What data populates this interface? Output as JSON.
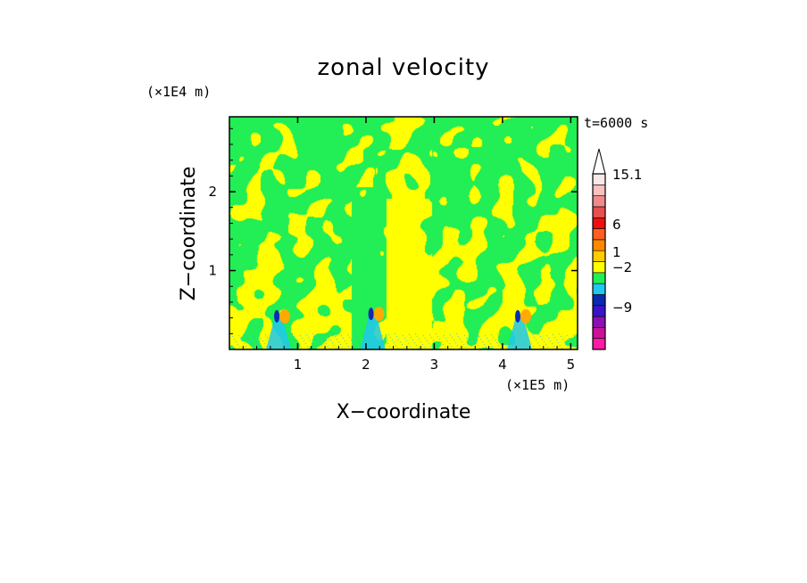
{
  "chart_data": {
    "type": "heatmap",
    "title": "zonal velocity",
    "xlabel": "X−coordinate",
    "ylabel": "Z−coordinate",
    "x_unit": "(×1E5 m)",
    "y_unit": "(×1E4 m)",
    "time_label": "t=6000 s",
    "xlim": [
      0,
      5.1
    ],
    "ylim": [
      0,
      2.95
    ],
    "x_ticks": [
      "1",
      "2",
      "3",
      "4",
      "5"
    ],
    "y_ticks": [
      "1",
      "2"
    ],
    "x_tick_values": [
      1,
      2,
      3,
      4,
      5
    ],
    "y_tick_values": [
      1,
      2
    ],
    "colorbar": {
      "labels": [
        "15.1",
        "6",
        "1",
        "−2",
        "−9"
      ],
      "levels": [
        -9,
        -2,
        1,
        6,
        15.1
      ],
      "colors": [
        "#ff1aa6",
        "#cc1099",
        "#8c0fb3",
        "#3a14c8",
        "#0a2ab4",
        "#1ec8f0",
        "#22ee55",
        "#ffff00",
        "#ffcc00",
        "#ff8800",
        "#ff6020",
        "#ee1010",
        "#e85050",
        "#f08a8a",
        "#f8c0c0",
        "#fae8e8"
      ],
      "extend": "max"
    },
    "features": [
      {
        "x": 0.72,
        "z": 0.42
      },
      {
        "x": 2.1,
        "z": 0.45
      },
      {
        "x": 4.25,
        "z": 0.42
      }
    ],
    "field_colors": {
      "green": "#22ee55",
      "yellow": "#ffff00",
      "cyan": "#1ec8f0",
      "orange": "#ffaa00",
      "blue": "#0a2ab4"
    }
  }
}
